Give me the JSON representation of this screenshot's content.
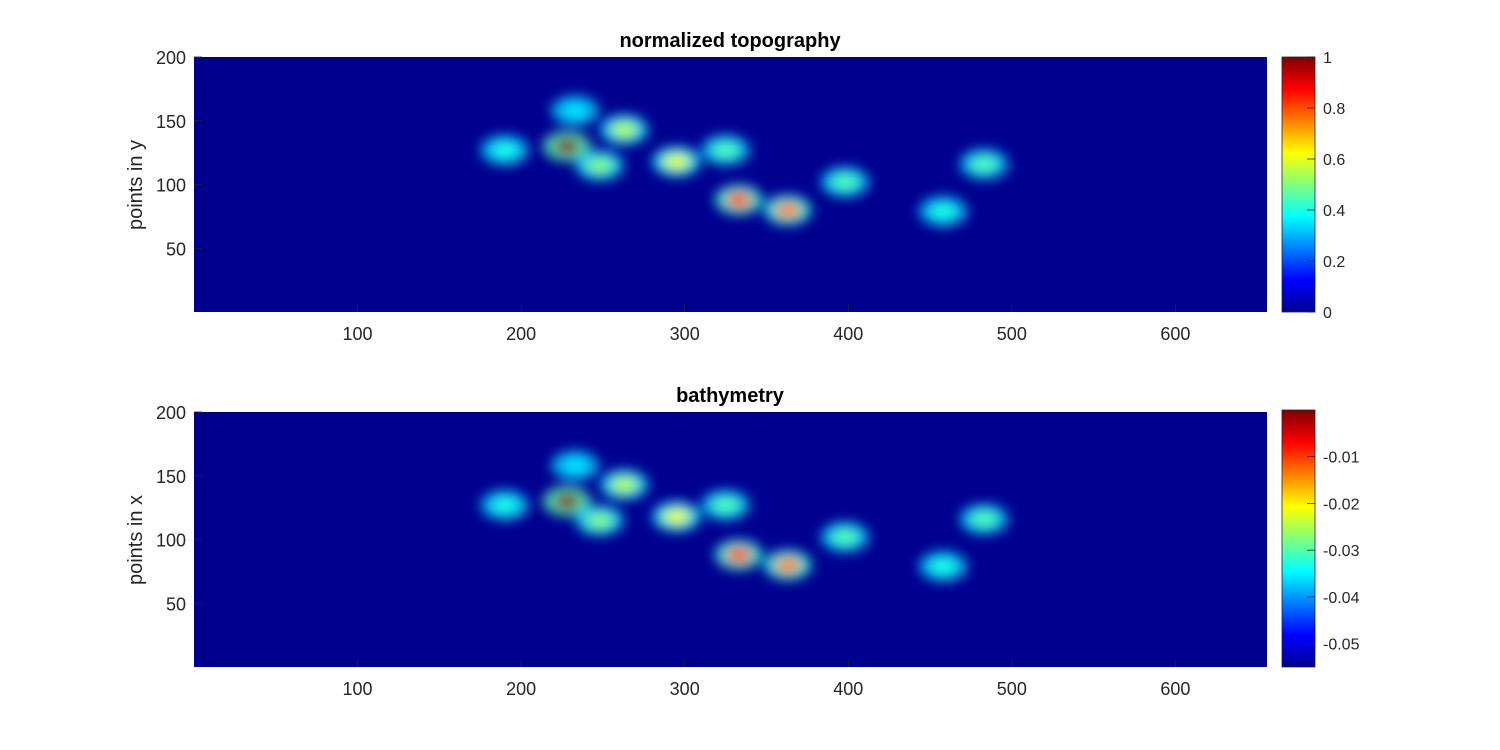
{
  "chart_data": [
    {
      "type": "heatmap",
      "title": "normalized topography",
      "xlabel": "",
      "ylabel": "points in y",
      "xlim": [
        0,
        656
      ],
      "ylim": [
        0,
        200
      ],
      "xticks": [
        100,
        200,
        300,
        400,
        500,
        600
      ],
      "yticks": [
        50,
        100,
        150,
        200
      ],
      "colormap": "jet",
      "clim": [
        0,
        1
      ],
      "colorbar_ticks": [
        0,
        0.2,
        0.4,
        0.6,
        0.8,
        1
      ],
      "colorbar_tick_labels": [
        "0",
        "0.2",
        "0.4",
        "0.6",
        "0.8",
        "1"
      ],
      "features": [
        {
          "x": 228,
          "y": 130,
          "value": 1.0
        },
        {
          "x": 263,
          "y": 143,
          "value": 0.55
        },
        {
          "x": 248,
          "y": 115,
          "value": 0.5
        },
        {
          "x": 233,
          "y": 158,
          "value": 0.35
        },
        {
          "x": 190,
          "y": 127,
          "value": 0.4
        },
        {
          "x": 295,
          "y": 118,
          "value": 0.6
        },
        {
          "x": 325,
          "y": 127,
          "value": 0.45
        },
        {
          "x": 333,
          "y": 88,
          "value": 0.8
        },
        {
          "x": 363,
          "y": 80,
          "value": 0.75
        },
        {
          "x": 398,
          "y": 102,
          "value": 0.45
        },
        {
          "x": 483,
          "y": 116,
          "value": 0.45
        },
        {
          "x": 458,
          "y": 79,
          "value": 0.4
        }
      ]
    },
    {
      "type": "heatmap",
      "title": "bathymetry",
      "xlabel": "",
      "ylabel": "points in x",
      "xlim": [
        0,
        656
      ],
      "ylim": [
        0,
        200
      ],
      "xticks": [
        100,
        200,
        300,
        400,
        500,
        600
      ],
      "yticks": [
        50,
        100,
        150,
        200
      ],
      "colormap": "jet",
      "clim": [
        -0.055,
        0
      ],
      "colorbar_ticks": [
        -0.05,
        -0.04,
        -0.03,
        -0.02,
        -0.01
      ],
      "colorbar_tick_labels": [
        "-0.05",
        "-0.04",
        "-0.03",
        "-0.02",
        "-0.01"
      ]
    }
  ]
}
